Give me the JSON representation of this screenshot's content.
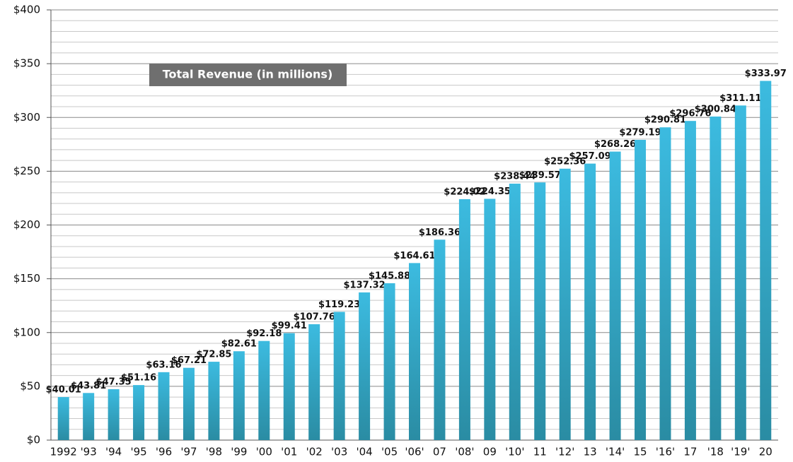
{
  "chart_data": {
    "type": "bar",
    "title": "Total Revenue (in millions)",
    "categories": [
      "1992",
      "'93",
      "'94",
      "'95",
      "'96",
      "'97",
      "'98",
      "'99",
      "'00",
      "'01",
      "'02",
      "'03",
      "'04",
      "'05",
      "'06'",
      "07",
      "'08'",
      "09",
      "'10'",
      "11",
      "'12'",
      "13",
      "'14'",
      "15",
      "'16'",
      "17",
      "'18",
      "'19'",
      "20"
    ],
    "values": [
      40.01,
      43.81,
      47.35,
      51.16,
      63.16,
      67.21,
      72.85,
      82.61,
      92.18,
      99.41,
      107.76,
      119.23,
      137.32,
      145.88,
      164.61,
      186.36,
      224.02,
      224.35,
      238.44,
      239.57,
      252.36,
      257.09,
      268.26,
      279.19,
      290.81,
      296.76,
      300.84,
      311.11,
      333.97
    ],
    "value_labels": [
      "$40.01",
      "$43.81",
      "$47.35",
      "$51.16",
      "$63.16",
      "$67.21",
      "$72.85",
      "$82.61",
      "$92.18",
      "$99.41",
      "$107.76",
      "$119.23",
      "$137.32",
      "$145.88",
      "$164.61",
      "$186.36",
      "$224.02",
      "$224.35",
      "$238.44",
      "$239.57",
      "$252.36",
      "$257.09",
      "$268.26",
      "$279.19",
      "$290.81",
      "$296.76",
      "$300.84",
      "$311.11",
      "$333.97"
    ],
    "color": "#36b0d3",
    "ylim": [
      0,
      400
    ],
    "yticks": [
      {
        "value": 0,
        "label": "$0"
      },
      {
        "value": 50,
        "label": "$50"
      },
      {
        "value": 100,
        "label": "$100"
      },
      {
        "value": 150,
        "label": "$150"
      },
      {
        "value": 200,
        "label": "$200"
      },
      {
        "value": 250,
        "label": "$250"
      },
      {
        "value": 300,
        "label": "$300"
      },
      {
        "value": 350,
        "label": "$350"
      },
      {
        "value": 400,
        "label": "$400"
      }
    ],
    "minor_yticks": [
      10,
      20,
      30,
      40,
      60,
      70,
      80,
      90,
      110,
      120,
      130,
      140,
      160,
      170,
      180,
      190,
      210,
      220,
      230,
      240,
      260,
      270,
      280,
      290,
      310,
      320,
      330,
      340,
      360,
      370,
      380,
      390
    ],
    "grid": true
  }
}
